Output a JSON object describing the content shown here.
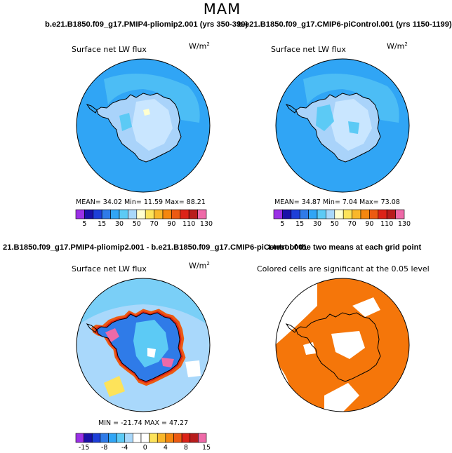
{
  "page": {
    "title": "MAM"
  },
  "colors": {
    "ocean": "#30a5f5",
    "ice": "#a9d3fa",
    "ice2": "#c9e6ff",
    "coast": "#000000",
    "sig": "#f5760a",
    "abs_scale": [
      "#9b30e6",
      "#1a10a8",
      "#1e3fd8",
      "#2f7be8",
      "#30a5f5",
      "#5ccaf5",
      "#a9d8fb",
      "#ffffd0",
      "#fde35a",
      "#f9b72a",
      "#f5870f",
      "#ec5a12",
      "#dc2318",
      "#b81c1c",
      "#ee6aa8"
    ],
    "diff_scale": [
      "#9b30e6",
      "#1a10a8",
      "#1e3fd8",
      "#2f7be8",
      "#30a5f5",
      "#5ccaf5",
      "#a9d8fb",
      "#ffffff",
      "#ffffff",
      "#fde35a",
      "#f9b72a",
      "#f5870f",
      "#ec5a12",
      "#dc2318",
      "#b81c1c",
      "#ee6aa8"
    ]
  },
  "panels": {
    "p1": {
      "exp_title": "b.e21.B1850.f09_g17.PMIP4-pliomip2.001 (yrs 350-399)",
      "var_title": "Surface net LW flux",
      "units": "W/m",
      "units_exp": "2",
      "stats": "MEAN=   34.02   Min=   11.59   Max=   88.21"
    },
    "p2": {
      "exp_title": "b.e21.B1850.f09_g17.CMIP6-piControl.001 (yrs 1150-1199)",
      "var_title": "Surface net LW flux",
      "units": "W/m",
      "units_exp": "2",
      "stats": "MEAN=   34.87   Min=    7.04   Max=   73.08"
    },
    "p3": {
      "exp_title": "21.B1850.f09_g17.PMIP4-pliomip2.001 - b.e21.B1850.f09_g17.CMIP6-piControl.001",
      "var_title": "Surface net LW flux",
      "units": "W/m",
      "units_exp": "2",
      "stats": "MIN = -21.74 MAX =  47.27"
    },
    "p4": {
      "exp_title": "t-test of the two means at each grid point",
      "var_title": "Colored cells are significant at the 0.05 level"
    }
  },
  "chart_data": [
    {
      "type": "heatmap",
      "title": "Surface net LW flux",
      "subtitle": "b.e21.B1850.f09_g17.PMIP4-pliomip2.001 (yrs 350-399)",
      "units": "W/m2",
      "colorbar_ticks": [
        "5",
        "15",
        "30",
        "50",
        "70",
        "90",
        "110",
        "130"
      ],
      "stats": {
        "mean": 34.02,
        "min": 11.59,
        "max": 88.21
      }
    },
    {
      "type": "heatmap",
      "title": "Surface net LW flux",
      "subtitle": "b.e21.B1850.f09_g17.CMIP6-piControl.001 (yrs 1150-1199)",
      "units": "W/m2",
      "colorbar_ticks": [
        "5",
        "15",
        "30",
        "50",
        "70",
        "90",
        "110",
        "130"
      ],
      "stats": {
        "mean": 34.87,
        "min": 7.04,
        "max": 73.08
      }
    },
    {
      "type": "heatmap",
      "title": "Surface net LW flux",
      "subtitle": "21.B1850.f09_g17.PMIP4-pliomip2.001 - b.e21.B1850.f09_g17.CMIP6-piControl.001",
      "units": "W/m2",
      "colorbar_ticks": [
        "-15",
        "-8",
        "-4",
        "0",
        "4",
        "8",
        "15"
      ],
      "stats": {
        "min": -21.74,
        "max": 47.27
      }
    },
    {
      "type": "heatmap",
      "title": "t-test of the two means at each grid point",
      "subtitle": "Colored cells are significant at the 0.05 level"
    }
  ]
}
